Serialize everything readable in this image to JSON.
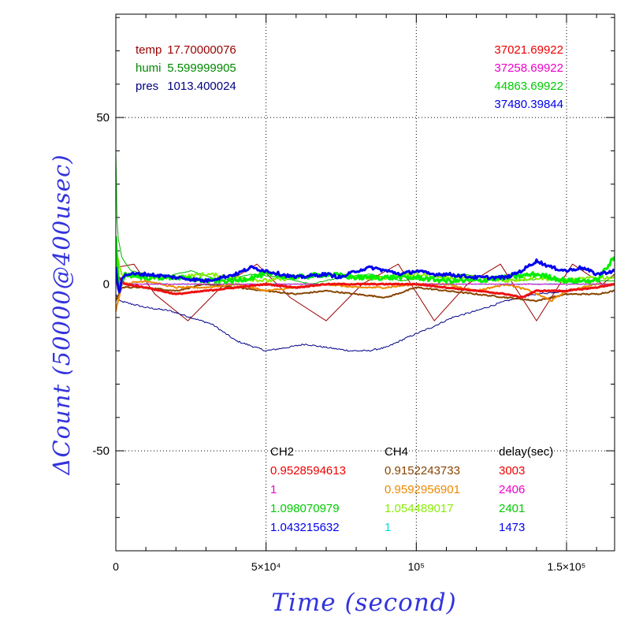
{
  "chart_data": {
    "type": "line",
    "ylabel": "ΔCount (50000@400usec)",
    "xlabel": "Time (second)",
    "xlim": [
      0,
      166000
    ],
    "ylim": [
      -80,
      81
    ],
    "grid": true,
    "x_ticks": [
      {
        "value": 0,
        "label": "0"
      },
      {
        "value": 50000,
        "label": "5×10⁴"
      },
      {
        "value": 100000,
        "label": "10⁵"
      },
      {
        "value": 150000,
        "label": "1.5×10⁵"
      }
    ],
    "y_ticks": [
      {
        "value": 50,
        "label": "50"
      },
      {
        "value": 0,
        "label": "0"
      },
      {
        "value": -50,
        "label": "-50"
      }
    ],
    "env_labels": [
      {
        "label": "temp",
        "value": "17.70000076",
        "color": "#990000"
      },
      {
        "label": "humi",
        "value": "5.599999905",
        "color": "#008800"
      },
      {
        "label": "pres",
        "value": "1013.400024",
        "color": "#000080"
      }
    ],
    "top_right_values": [
      {
        "text": "37021.69922",
        "color": "#ee0000"
      },
      {
        "text": "37258.69922",
        "color": "#ee00cc"
      },
      {
        "text": "44863.69922",
        "color": "#00cc00"
      },
      {
        "text": "37480.39844",
        "color": "#0000ee"
      }
    ],
    "table_headers": [
      "CH2",
      "CH4",
      "delay(sec)"
    ],
    "table_rows": [
      {
        "ch2": "0.9528594613",
        "ch2_color": "#ee0000",
        "ch4": "0.9152243733",
        "ch4_color": "#884400",
        "delay": "3003",
        "delay_color": "#ee0000"
      },
      {
        "ch2": "1",
        "ch2_color": "#ee00cc",
        "ch4": "0.9592956901",
        "ch4_color": "#ee8800",
        "delay": "2406",
        "delay_color": "#ee00cc"
      },
      {
        "ch2": "1.098070979",
        "ch2_color": "#00cc00",
        "ch4": "1.054489017",
        "ch4_color": "#88ee00",
        "delay": "2401",
        "delay_color": "#00cc00"
      },
      {
        "ch2": "1.043215632",
        "ch2_color": "#0000ee",
        "ch4": "1",
        "ch4_color": "#00dddd",
        "delay": "1473",
        "delay_color": "#0000ee"
      }
    ],
    "series": [
      {
        "color": "#990000",
        "width": 1,
        "noise": 0,
        "x": [
          0,
          6000,
          13000,
          24000,
          36000,
          47000,
          58000,
          70000,
          82000,
          94000,
          106000,
          117000,
          128000,
          140000,
          152000,
          162000,
          166000
        ],
        "y": [
          5,
          6,
          -3,
          -11,
          0,
          6,
          -4,
          -11,
          0,
          6,
          -11,
          0,
          6,
          -11,
          6,
          0,
          3
        ]
      },
      {
        "color": "#000088",
        "width": 1,
        "noise": 0.5,
        "x": [
          0,
          1000,
          10000,
          18000,
          25000,
          32000,
          40000,
          50000,
          57000,
          63000,
          70000,
          78000,
          84000,
          90000,
          97000,
          105000,
          112000,
          120000,
          130000,
          140000,
          150000,
          160000,
          166000
        ],
        "y": [
          -3,
          -5,
          -7,
          -8,
          -10,
          -12,
          -17,
          -20,
          -19,
          -18,
          -19,
          -20,
          -20,
          -19,
          -16,
          -13,
          -10,
          -8,
          -5,
          -3,
          -2,
          -1,
          0
        ]
      },
      {
        "color": "#00bb00",
        "width": 1,
        "noise": 0.3,
        "x": [
          0,
          500,
          2000,
          5000,
          15000,
          25000,
          35000,
          45000,
          55000,
          65000,
          75000,
          85000,
          95000,
          105000,
          115000,
          125000,
          135000,
          145000,
          155000,
          166000
        ],
        "y": [
          40,
          15,
          8,
          4,
          2,
          4,
          1,
          3,
          2,
          0,
          2,
          3,
          1,
          2,
          3,
          2,
          1,
          2,
          1,
          1
        ]
      },
      {
        "color": "#884400",
        "width": 2,
        "noise": 0.4,
        "x": [
          0,
          2000,
          10000,
          20000,
          30000,
          40000,
          50000,
          60000,
          70000,
          80000,
          90000,
          100000,
          110000,
          120000,
          130000,
          140000,
          150000,
          160000,
          166000
        ],
        "y": [
          -5,
          -1,
          -1,
          -2,
          0,
          -1,
          -2,
          -3,
          -2,
          -3,
          -4,
          -1,
          -2,
          -3,
          -4,
          -5,
          -3,
          -3,
          -2
        ]
      },
      {
        "color": "#ee8800",
        "width": 2,
        "noise": 0.5,
        "x": [
          0,
          2000,
          10000,
          20000,
          30000,
          40000,
          50000,
          60000,
          70000,
          80000,
          90000,
          100000,
          110000,
          120000,
          130000,
          138000,
          145000,
          150000,
          160000,
          166000
        ],
        "y": [
          -8,
          0,
          1,
          -1,
          -1,
          0,
          -2,
          -1,
          0,
          -1,
          -1,
          0,
          0,
          -2,
          0,
          -2,
          -5,
          -2,
          0,
          0
        ]
      },
      {
        "color": "#88ee00",
        "width": 2,
        "noise": 1.2,
        "x": [
          0,
          2000,
          10000,
          20000,
          30000,
          40000,
          50000,
          60000,
          70000,
          80000,
          90000,
          100000,
          110000,
          120000,
          130000,
          140000,
          150000,
          160000,
          166000
        ],
        "y": [
          10,
          3,
          2,
          2,
          3,
          2,
          1,
          2,
          3,
          2,
          2,
          3,
          2,
          2,
          1,
          2,
          1,
          2,
          2
        ]
      },
      {
        "color": "#00dddd",
        "width": 1,
        "noise": 0.3,
        "x": [
          0,
          166000
        ],
        "y": [
          0,
          0
        ]
      },
      {
        "color": "#ee00cc",
        "width": 1,
        "noise": 0.3,
        "x": [
          0,
          166000
        ],
        "y": [
          0,
          0
        ]
      },
      {
        "color": "#ee1111",
        "width": 3,
        "noise": 0.3,
        "x": [
          0,
          3000,
          10000,
          20000,
          30000,
          40000,
          50000,
          60000,
          70000,
          80000,
          90000,
          100000,
          110000,
          120000,
          130000,
          135000,
          140000,
          150000,
          160000,
          166000
        ],
        "y": [
          3,
          0,
          -1,
          -3,
          -2,
          -1,
          0,
          -1,
          0,
          0,
          0,
          0,
          -1,
          -2,
          -3,
          -4,
          -2,
          -2,
          -1,
          0
        ]
      },
      {
        "color": "#00ee00",
        "width": 3,
        "noise": 1.5,
        "x": [
          0,
          1000,
          3000,
          10000,
          20000,
          30000,
          40000,
          50000,
          60000,
          70000,
          80000,
          90000,
          100000,
          110000,
          120000,
          130000,
          140000,
          150000,
          160000,
          166000
        ],
        "y": [
          14,
          -2,
          3,
          2,
          2,
          1,
          1,
          3,
          2,
          3,
          2,
          2,
          2,
          1,
          1,
          2,
          3,
          1,
          1,
          8
        ]
      },
      {
        "color": "#0000ee",
        "width": 3,
        "noise": 1.0,
        "x": [
          0,
          1000,
          2000,
          4000,
          10000,
          20000,
          30000,
          40000,
          45000,
          50000,
          55000,
          60000,
          70000,
          75000,
          80000,
          85000,
          90000,
          95000,
          100000,
          105000,
          110000,
          120000,
          130000,
          135000,
          140000,
          145000,
          150000,
          155000,
          160000,
          166000
        ],
        "y": [
          5,
          -3,
          2,
          3,
          3,
          2,
          1,
          3,
          5,
          4,
          3,
          2,
          3,
          2,
          4,
          5,
          4,
          3,
          4,
          3,
          3,
          2,
          2,
          4,
          7,
          5,
          4,
          5,
          3,
          4
        ]
      }
    ]
  }
}
